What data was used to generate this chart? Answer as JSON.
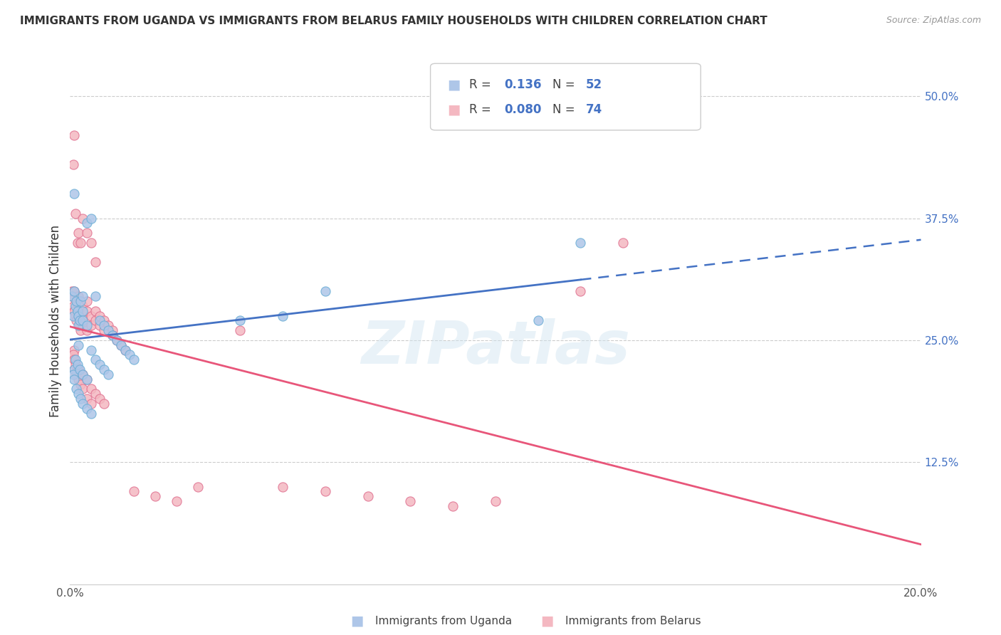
{
  "title": "IMMIGRANTS FROM UGANDA VS IMMIGRANTS FROM BELARUS FAMILY HOUSEHOLDS WITH CHILDREN CORRELATION CHART",
  "source": "Source: ZipAtlas.com",
  "ylabel": "Family Households with Children",
  "xlim": [
    0.0,
    0.2
  ],
  "ylim": [
    0.0,
    0.54
  ],
  "uganda_color": "#aec6e8",
  "belarus_color": "#f4b8c1",
  "uganda_edge": "#6aaed6",
  "belarus_edge": "#e07090",
  "line_uganda_color": "#4472c4",
  "line_belarus_color": "#e8567a",
  "watermark": "ZIPatlas",
  "legend_labels": [
    "Immigrants from Uganda",
    "Immigrants from Belarus"
  ],
  "uganda_R": "0.136",
  "uganda_N": "52",
  "belarus_R": "0.080",
  "belarus_N": "74",
  "uganda_x": [
    0.0005,
    0.001,
    0.0008,
    0.0012,
    0.0015,
    0.0018,
    0.002,
    0.002,
    0.0022,
    0.0025,
    0.003,
    0.003,
    0.003,
    0.004,
    0.004,
    0.005,
    0.006,
    0.007,
    0.008,
    0.009,
    0.01,
    0.011,
    0.012,
    0.013,
    0.014,
    0.015,
    0.001,
    0.0008,
    0.001,
    0.0015,
    0.002,
    0.0025,
    0.003,
    0.004,
    0.005,
    0.002,
    0.001,
    0.0012,
    0.0018,
    0.0022,
    0.003,
    0.004,
    0.005,
    0.006,
    0.007,
    0.008,
    0.009,
    0.04,
    0.05,
    0.06,
    0.11,
    0.12
  ],
  "uganda_y": [
    0.295,
    0.3,
    0.275,
    0.285,
    0.29,
    0.28,
    0.275,
    0.265,
    0.27,
    0.29,
    0.28,
    0.295,
    0.27,
    0.265,
    0.37,
    0.375,
    0.295,
    0.27,
    0.265,
    0.26,
    0.255,
    0.25,
    0.245,
    0.24,
    0.235,
    0.23,
    0.22,
    0.215,
    0.21,
    0.2,
    0.195,
    0.19,
    0.185,
    0.18,
    0.175,
    0.245,
    0.4,
    0.23,
    0.225,
    0.22,
    0.215,
    0.21,
    0.24,
    0.23,
    0.225,
    0.22,
    0.215,
    0.27,
    0.275,
    0.3,
    0.27,
    0.35
  ],
  "belarus_x": [
    0.0003,
    0.0005,
    0.0008,
    0.001,
    0.001,
    0.0012,
    0.0015,
    0.0015,
    0.002,
    0.002,
    0.002,
    0.0022,
    0.0025,
    0.003,
    0.003,
    0.003,
    0.004,
    0.004,
    0.004,
    0.005,
    0.005,
    0.006,
    0.006,
    0.007,
    0.007,
    0.008,
    0.008,
    0.009,
    0.01,
    0.01,
    0.011,
    0.012,
    0.013,
    0.001,
    0.0008,
    0.0012,
    0.0018,
    0.002,
    0.0025,
    0.003,
    0.004,
    0.005,
    0.006,
    0.001,
    0.0015,
    0.002,
    0.0025,
    0.003,
    0.004,
    0.005,
    0.001,
    0.0008,
    0.001,
    0.0012,
    0.002,
    0.003,
    0.004,
    0.005,
    0.006,
    0.007,
    0.008,
    0.04,
    0.05,
    0.06,
    0.07,
    0.08,
    0.09,
    0.1,
    0.12,
    0.13,
    0.015,
    0.02,
    0.025,
    0.03
  ],
  "belarus_y": [
    0.295,
    0.3,
    0.285,
    0.28,
    0.3,
    0.275,
    0.29,
    0.27,
    0.285,
    0.275,
    0.295,
    0.265,
    0.26,
    0.285,
    0.275,
    0.265,
    0.29,
    0.28,
    0.26,
    0.275,
    0.265,
    0.28,
    0.27,
    0.275,
    0.265,
    0.27,
    0.26,
    0.265,
    0.26,
    0.255,
    0.25,
    0.245,
    0.24,
    0.46,
    0.43,
    0.38,
    0.35,
    0.36,
    0.35,
    0.375,
    0.36,
    0.35,
    0.33,
    0.22,
    0.215,
    0.21,
    0.205,
    0.2,
    0.19,
    0.185,
    0.24,
    0.235,
    0.23,
    0.225,
    0.22,
    0.215,
    0.21,
    0.2,
    0.195,
    0.19,
    0.185,
    0.26,
    0.1,
    0.095,
    0.09,
    0.085,
    0.08,
    0.085,
    0.3,
    0.35,
    0.095,
    0.09,
    0.085,
    0.1
  ]
}
